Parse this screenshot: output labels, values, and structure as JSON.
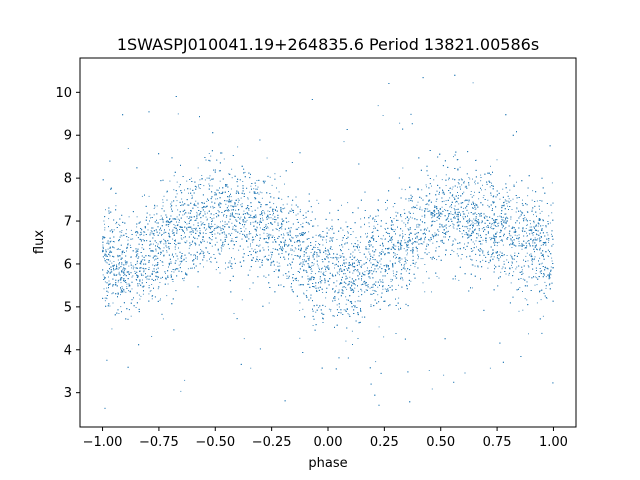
{
  "chart_data": {
    "type": "scatter",
    "title": "1SWASPJ010041.19+264835.6 Period 13821.00586s",
    "xlabel": "phase",
    "ylabel": "flux",
    "xlim": [
      -1.1,
      1.1
    ],
    "ylim": [
      2.2,
      10.8
    ],
    "xticks": [
      -1.0,
      -0.75,
      -0.5,
      -0.25,
      0.0,
      0.25,
      0.5,
      0.75,
      1.0
    ],
    "xtick_labels": [
      "−1.00",
      "−0.75",
      "−0.50",
      "−0.25",
      "0.00",
      "0.25",
      "0.50",
      "0.75",
      "1.00"
    ],
    "yticks": [
      3,
      4,
      5,
      6,
      7,
      8,
      9,
      10
    ],
    "ytick_labels": [
      "3",
      "4",
      "5",
      "6",
      "7",
      "8",
      "9",
      "10"
    ],
    "grid": false,
    "marker_color": "#1f77b4",
    "series": [
      {
        "x": [
          -1.0,
          -0.9,
          -0.8,
          -0.7,
          -0.6,
          -0.5,
          -0.4,
          -0.3,
          -0.2,
          -0.1,
          0.0,
          0.05,
          0.1,
          0.2,
          0.3,
          0.4,
          0.5,
          0.6,
          0.7,
          0.8,
          0.9,
          1.0
        ],
        "values": [
          6.1,
          5.9,
          6.2,
          6.6,
          6.9,
          7.1,
          7.1,
          6.9,
          6.6,
          6.2,
          5.8,
          5.6,
          5.7,
          6.0,
          6.4,
          6.8,
          7.1,
          7.1,
          6.9,
          6.7,
          6.5,
          6.2
        ]
      }
    ]
  }
}
